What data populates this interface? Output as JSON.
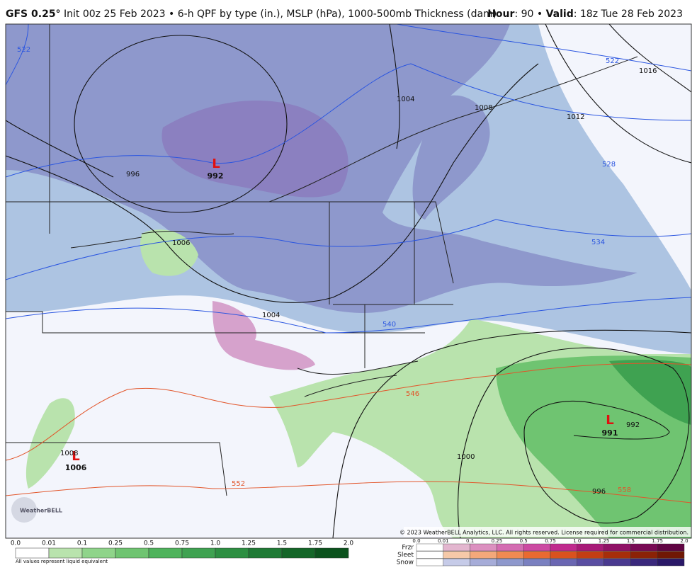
{
  "header": {
    "model": "GFS 0.25°",
    "description": "Init 00z 25 Feb 2023 • 6-h QPF by type (in.), MSLP (hPa), 1000-500mb Thickness (dam)",
    "hour_label": "Hour",
    "hour_value": ": 90 • ",
    "valid_label": "Valid",
    "valid_value": ": 18z Tue 28 Feb 2023"
  },
  "map": {
    "lows": [
      {
        "symbol": "L",
        "pressure": "992"
      },
      {
        "symbol": "L",
        "pressure": "991"
      },
      {
        "symbol": "L",
        "pressure": "1006"
      }
    ],
    "isobar_labels": [
      "996",
      "1006",
      "1004",
      "1004",
      "1008",
      "1012",
      "1016",
      "1000",
      "992",
      "996",
      "1008"
    ],
    "thickness_labels": [
      "522",
      "522",
      "528",
      "534",
      "540",
      "546",
      "552",
      "558"
    ],
    "logo": "WeatherBELL",
    "copyright": "© 2023 WeatherBELL Analytics, LLC. All rights reserved. License required for commercial distribution."
  },
  "legend": {
    "qpf_ticks": [
      "0.0",
      "0.01",
      "0.1",
      "0.25",
      "0.5",
      "0.75",
      "1.0",
      "1.25",
      "1.5",
      "1.75",
      "2.0"
    ],
    "note": "All values represent liquid equivalent",
    "types": [
      "Frzr",
      "Sleet",
      "Snow"
    ],
    "type_ticks": [
      "0.0",
      "0.01",
      "0.1",
      "0.25",
      "0.5",
      "0.75",
      "1.0",
      "1.25",
      "1.5",
      "1.75",
      "2.0"
    ]
  }
}
